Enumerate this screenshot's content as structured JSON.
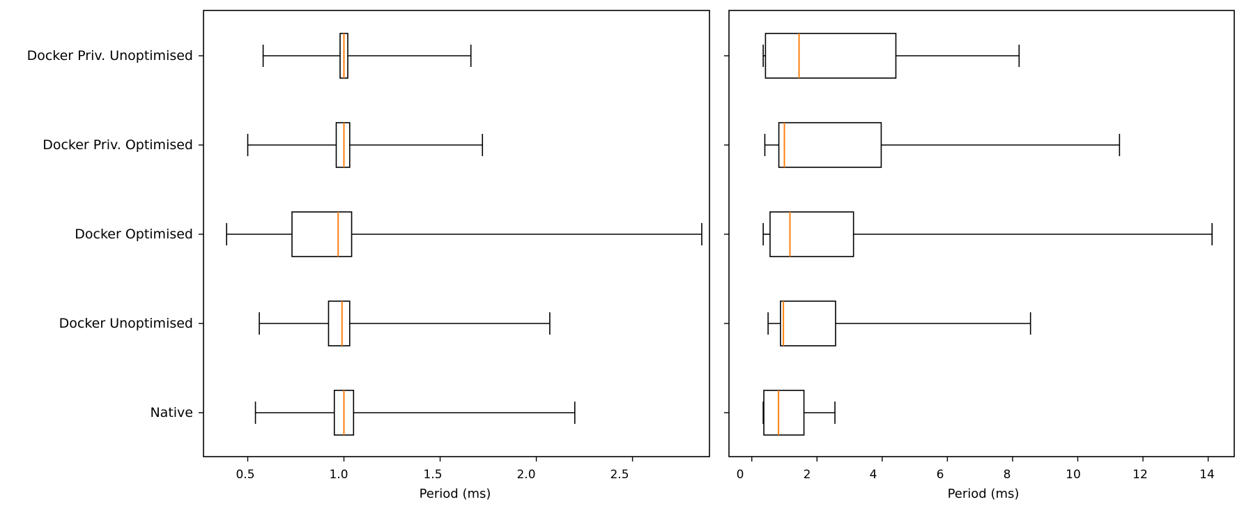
{
  "colors": {
    "box": "#000000",
    "median": "#ff7f0e",
    "background": "#ffffff"
  },
  "chart_data": [
    {
      "type": "boxplot",
      "orientation": "horizontal",
      "xlabel": "Period (ms)",
      "ylabel": "",
      "xlim": [
        0.27,
        2.9
      ],
      "xticks": [
        0.5,
        1.0,
        1.5,
        2.0,
        2.5
      ],
      "xtick_labels": [
        "0.5",
        "1.0",
        "1.5",
        "2.0",
        "2.5"
      ],
      "categories": [
        "Native",
        "Docker Unoptimised",
        "Docker Optimised",
        "Docker Priv. Optimised",
        "Docker Priv. Unoptimised"
      ],
      "boxes": [
        {
          "label": "Native",
          "whisker_low": 0.54,
          "q1": 0.95,
          "median": 1.0,
          "q3": 1.05,
          "whisker_high": 2.2
        },
        {
          "label": "Docker Unoptimised",
          "whisker_low": 0.56,
          "q1": 0.92,
          "median": 0.99,
          "q3": 1.03,
          "whisker_high": 2.07
        },
        {
          "label": "Docker Optimised",
          "whisker_low": 0.39,
          "q1": 0.73,
          "median": 0.97,
          "q3": 1.04,
          "whisker_high": 2.86
        },
        {
          "label": "Docker Priv. Optimised",
          "whisker_low": 0.5,
          "q1": 0.96,
          "median": 1.0,
          "q3": 1.03,
          "whisker_high": 1.72
        },
        {
          "label": "Docker Priv. Unoptimised",
          "whisker_low": 0.58,
          "q1": 0.98,
          "median": 1.0,
          "q3": 1.02,
          "whisker_high": 1.66
        }
      ]
    },
    {
      "type": "boxplot",
      "orientation": "horizontal",
      "xlabel": "Period (ms)",
      "ylabel": "",
      "xlim": [
        -0.7,
        14.8
      ],
      "xticks": [
        0,
        2,
        4,
        6,
        8,
        10,
        12,
        14
      ],
      "xtick_labels": [
        "0",
        "2",
        "4",
        "6",
        "8",
        "10",
        "12",
        "14"
      ],
      "categories": [
        "Native",
        "Docker Unoptimised",
        "Docker Optimised",
        "Docker Priv. Optimised",
        "Docker Priv. Unoptimised"
      ],
      "boxes": [
        {
          "label": "Native",
          "whisker_low": 0.35,
          "q1": 0.37,
          "median": 0.82,
          "q3": 1.6,
          "whisker_high": 2.55
        },
        {
          "label": "Docker Unoptimised",
          "whisker_low": 0.5,
          "q1": 0.88,
          "median": 0.97,
          "q3": 2.57,
          "whisker_high": 8.55
        },
        {
          "label": "Docker Optimised",
          "whisker_low": 0.35,
          "q1": 0.56,
          "median": 1.17,
          "q3": 3.12,
          "whisker_high": 14.12
        },
        {
          "label": "Docker Priv. Optimised",
          "whisker_low": 0.4,
          "q1": 0.83,
          "median": 1.0,
          "q3": 3.97,
          "whisker_high": 11.28
        },
        {
          "label": "Docker Priv. Unoptimised",
          "whisker_low": 0.35,
          "q1": 0.42,
          "median": 1.45,
          "q3": 4.42,
          "whisker_high": 8.2
        }
      ]
    }
  ]
}
